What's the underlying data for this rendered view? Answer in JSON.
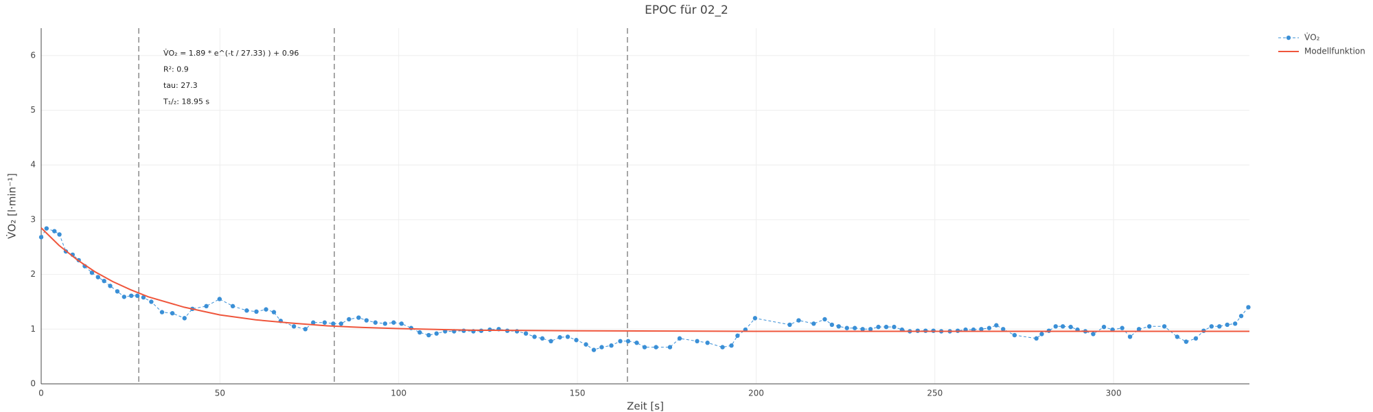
{
  "chart_data": {
    "type": "line",
    "title": "EPOC für 02_2",
    "x_label": "Zeit [s]",
    "y_label": "V̇O₂ [l·min⁻¹]",
    "xlim": [
      0,
      338
    ],
    "ylim": [
      0,
      6.5
    ],
    "xticks": [
      0,
      50,
      100,
      150,
      200,
      250,
      300
    ],
    "yticks": [
      0,
      1,
      2,
      3,
      4,
      5,
      6
    ],
    "grid": true,
    "legend": "top-right",
    "annotations": [
      "V̇O₂ = 1.89 * e^(-t / 27.33) ) + 0.96",
      "R²: 0.9",
      "tau: 27.3",
      "T₁/₂: 18.95 s"
    ],
    "vlines": [
      27.3,
      82,
      164
    ],
    "series": [
      {
        "name": "V̇O₂",
        "color": "#3a8fd6",
        "mode": "lines+markers",
        "x": [
          0,
          1.5,
          3.7,
          5.1,
          6.9,
          8.8,
          10.5,
          12.2,
          14.2,
          15.9,
          17.6,
          19.3,
          21.3,
          23.2,
          25.2,
          26.9,
          28.6,
          30.8,
          33.8,
          36.7,
          40.1,
          42.3,
          46.2,
          49.9,
          53.6,
          57.5,
          60.2,
          62.9,
          65.1,
          67.0,
          70.7,
          73.9,
          76.1,
          79.3,
          81.7,
          83.9,
          86.1,
          88.8,
          91.0,
          93.5,
          96.2,
          98.6,
          100.8,
          103.5,
          105.9,
          108.4,
          110.6,
          113.0,
          115.5,
          118.2,
          120.9,
          123.1,
          125.5,
          128.0,
          130.4,
          133.1,
          135.6,
          138.0,
          140.2,
          142.6,
          145.1,
          147.3,
          149.7,
          152.4,
          154.6,
          156.8,
          159.5,
          162.0,
          164.2,
          166.6,
          168.8,
          172.0,
          175.9,
          178.6,
          183.5,
          186.4,
          190.6,
          193.1,
          194.8,
          197.0,
          199.7,
          209.4,
          211.9,
          216.1,
          219.2,
          221.2,
          223.1,
          225.4,
          227.6,
          229.8,
          232.0,
          234.2,
          236.4,
          238.6,
          240.8,
          243.0,
          245.2,
          247.4,
          249.6,
          251.8,
          254.2,
          256.4,
          258.6,
          260.8,
          263.0,
          265.2,
          267.2,
          269.1,
          272.3,
          278.4,
          279.9,
          281.9,
          283.8,
          285.8,
          288.0,
          289.9,
          292.1,
          294.3,
          297.3,
          299.7,
          302.4,
          304.6,
          307.1,
          310.0,
          314.2,
          317.8,
          320.3,
          323.0,
          325.2,
          327.4,
          329.6,
          331.8,
          334.0,
          335.7,
          337.7
        ],
        "values": [
          2.68,
          2.84,
          2.79,
          2.73,
          2.42,
          2.36,
          2.26,
          2.15,
          2.03,
          1.95,
          1.88,
          1.79,
          1.69,
          1.59,
          1.61,
          1.61,
          1.58,
          1.5,
          1.31,
          1.29,
          1.2,
          1.37,
          1.42,
          1.55,
          1.42,
          1.34,
          1.32,
          1.36,
          1.31,
          1.15,
          1.05,
          1.0,
          1.12,
          1.12,
          1.1,
          1.1,
          1.18,
          1.21,
          1.16,
          1.12,
          1.1,
          1.12,
          1.1,
          1.02,
          0.94,
          0.89,
          0.92,
          0.96,
          0.96,
          0.97,
          0.96,
          0.97,
          0.99,
          1.0,
          0.97,
          0.96,
          0.92,
          0.86,
          0.83,
          0.78,
          0.85,
          0.86,
          0.8,
          0.72,
          0.62,
          0.67,
          0.7,
          0.78,
          0.78,
          0.75,
          0.67,
          0.67,
          0.67,
          0.83,
          0.78,
          0.75,
          0.67,
          0.7,
          0.88,
          0.99,
          1.2,
          1.08,
          1.16,
          1.1,
          1.18,
          1.08,
          1.05,
          1.02,
          1.02,
          1.0,
          1.0,
          1.04,
          1.04,
          1.04,
          0.99,
          0.96,
          0.97,
          0.97,
          0.97,
          0.96,
          0.96,
          0.97,
          0.99,
          0.99,
          1.0,
          1.02,
          1.07,
          1.0,
          0.89,
          0.83,
          0.91,
          0.97,
          1.05,
          1.05,
          1.04,
          0.99,
          0.96,
          0.91,
          1.04,
          0.99,
          1.02,
          0.86,
          1.0,
          1.05,
          1.05,
          0.86,
          0.77,
          0.83,
          0.97,
          1.05,
          1.05,
          1.08,
          1.1,
          1.24,
          1.4
        ]
      },
      {
        "name": "Modellfunktion",
        "color": "#ef553b",
        "mode": "lines",
        "x": [
          0,
          5,
          10,
          15,
          20,
          25,
          30,
          40,
          50,
          60,
          70,
          80,
          90,
          100,
          120,
          150,
          200,
          250,
          300,
          338
        ],
        "values": [
          2.85,
          2.53,
          2.27,
          2.05,
          1.87,
          1.72,
          1.59,
          1.4,
          1.26,
          1.17,
          1.11,
          1.06,
          1.03,
          1.01,
          0.98,
          0.97,
          0.96,
          0.96,
          0.96,
          0.96
        ]
      }
    ]
  }
}
